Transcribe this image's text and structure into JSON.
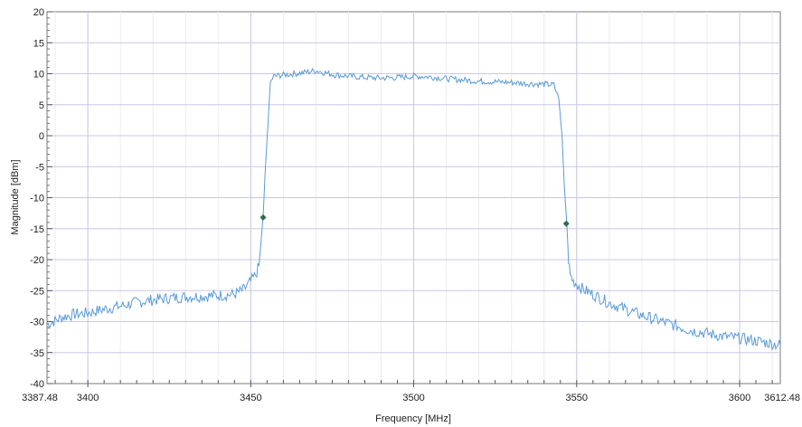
{
  "chart_data": {
    "type": "line",
    "title": "",
    "xlabel": "Frequency [MHz]",
    "ylabel": "Magnitude [dBm]",
    "xlim": [
      3387.48,
      3612.48
    ],
    "ylim": [
      -40,
      20
    ],
    "x_ticks": [
      {
        "value": 3387.48,
        "label": "3387.48"
      },
      {
        "value": 3400,
        "label": "3400"
      },
      {
        "value": 3450,
        "label": "3450"
      },
      {
        "value": 3500,
        "label": "3500"
      },
      {
        "value": 3550,
        "label": "3550"
      },
      {
        "value": 3600,
        "label": "3600"
      },
      {
        "value": 3612.48,
        "label": "3612.48"
      }
    ],
    "y_ticks": [
      {
        "value": 20,
        "label": "20"
      },
      {
        "value": 15,
        "label": "15"
      },
      {
        "value": 10,
        "label": "10"
      },
      {
        "value": 5,
        "label": "5"
      },
      {
        "value": 0,
        "label": "0"
      },
      {
        "value": -5,
        "label": "-5"
      },
      {
        "value": -10,
        "label": "-10"
      },
      {
        "value": -15,
        "label": "-15"
      },
      {
        "value": -20,
        "label": "-20"
      },
      {
        "value": -25,
        "label": "-25"
      },
      {
        "value": -30,
        "label": "-30"
      },
      {
        "value": -35,
        "label": "-35"
      },
      {
        "value": -40,
        "label": "-40"
      }
    ],
    "grid": true,
    "series": [
      {
        "color": "#5b9bd5",
        "points": [
          [
            3387.48,
            -30.5
          ],
          [
            3392,
            -29.3
          ],
          [
            3396,
            -28.8
          ],
          [
            3400,
            -28.6
          ],
          [
            3405,
            -28.0
          ],
          [
            3410,
            -27.5
          ],
          [
            3415,
            -26.9
          ],
          [
            3420,
            -26.5
          ],
          [
            3425,
            -26.2
          ],
          [
            3430,
            -26.0
          ],
          [
            3435,
            -25.9
          ],
          [
            3440,
            -25.8
          ],
          [
            3445,
            -25.6
          ],
          [
            3448,
            -24.8
          ],
          [
            3450,
            -23.5
          ],
          [
            3451.5,
            -22.5
          ],
          [
            3452.5,
            -21.0
          ],
          [
            3453,
            -18.0
          ],
          [
            3453.8,
            -13.0
          ],
          [
            3454.5,
            -5.0
          ],
          [
            3455.5,
            4.0
          ],
          [
            3456,
            8.5
          ],
          [
            3457,
            9.6
          ],
          [
            3460,
            9.8
          ],
          [
            3465,
            10.1
          ],
          [
            3470,
            10.5
          ],
          [
            3475,
            9.9
          ],
          [
            3480,
            9.6
          ],
          [
            3485,
            9.4
          ],
          [
            3490,
            9.3
          ],
          [
            3495,
            9.4
          ],
          [
            3500,
            9.6
          ],
          [
            3505,
            9.5
          ],
          [
            3510,
            9.2
          ],
          [
            3515,
            9.0
          ],
          [
            3520,
            8.8
          ],
          [
            3525,
            8.7
          ],
          [
            3530,
            8.6
          ],
          [
            3535,
            8.4
          ],
          [
            3540,
            8.3
          ],
          [
            3543,
            8.2
          ],
          [
            3544.5,
            6.0
          ],
          [
            3545.5,
            0.0
          ],
          [
            3546.2,
            -8.0
          ],
          [
            3547,
            -14.5
          ],
          [
            3547.5,
            -20.0
          ],
          [
            3548,
            -22.5
          ],
          [
            3549,
            -23.5
          ],
          [
            3552,
            -24.8
          ],
          [
            3555,
            -25.6
          ],
          [
            3560,
            -27.0
          ],
          [
            3565,
            -28.0
          ],
          [
            3570,
            -29.0
          ],
          [
            3575,
            -29.8
          ],
          [
            3580,
            -30.6
          ],
          [
            3585,
            -31.4
          ],
          [
            3590,
            -31.9
          ],
          [
            3595,
            -32.4
          ],
          [
            3600,
            -32.7
          ],
          [
            3605,
            -33.1
          ],
          [
            3612.48,
            -33.8
          ]
        ]
      }
    ],
    "markers": [
      {
        "x": 3453.8,
        "y": -13.2,
        "color": "#2e6b4f"
      },
      {
        "x": 3546.8,
        "y": -14.2,
        "color": "#2e6b4f"
      }
    ]
  }
}
